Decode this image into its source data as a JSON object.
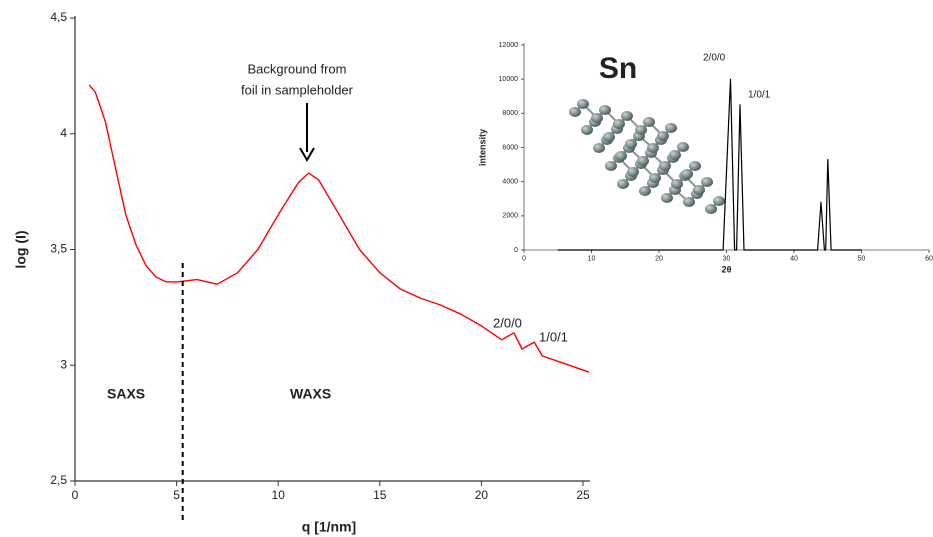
{
  "chart_data": [
    {
      "type": "line",
      "xlabel": "q [1/nm]",
      "ylabel": "log (I)",
      "xlim": [
        0,
        25
      ],
      "xticks": [
        0,
        5,
        10,
        15,
        20,
        25
      ],
      "ylim": [
        2.5,
        4.5
      ],
      "yticks": [
        {
          "value": 2.5,
          "label": "2,5"
        },
        3,
        {
          "value": 3.5,
          "label": "3,5"
        },
        4,
        {
          "value": 4.5,
          "label": "4,5"
        }
      ],
      "x": [
        0.7,
        1.0,
        1.5,
        2.0,
        2.5,
        3.0,
        3.5,
        4.0,
        4.5,
        5.0,
        6.0,
        7.0,
        8.0,
        9.0,
        10.0,
        11.0,
        11.5,
        12.0,
        13.0,
        14.0,
        15.0,
        16.0,
        17.0,
        18.0,
        19.0,
        20.0,
        21.0,
        21.6,
        22.0,
        22.6,
        23.0,
        24.0,
        25.3
      ],
      "values": [
        4.21,
        4.18,
        4.05,
        3.85,
        3.65,
        3.52,
        3.43,
        3.38,
        3.36,
        3.36,
        3.37,
        3.35,
        3.4,
        3.5,
        3.65,
        3.79,
        3.83,
        3.8,
        3.65,
        3.5,
        3.4,
        3.33,
        3.29,
        3.26,
        3.22,
        3.17,
        3.11,
        3.14,
        3.07,
        3.1,
        3.04,
        3.01,
        2.97
      ],
      "color": "#ff0000",
      "vlines": [
        5.3
      ],
      "annotations": [
        "Background from",
        "foil in sampleholder",
        "2/0/0",
        "1/0/1",
        "SAXS",
        "WAXS"
      ]
    },
    {
      "type": "line",
      "title": "Sn",
      "xlabel": "2θ",
      "ylabel": "intensity",
      "xlim": [
        0,
        60
      ],
      "xticks": [
        0,
        10,
        20,
        30,
        40,
        50,
        60
      ],
      "ylim": [
        0,
        12000
      ],
      "yticks": [
        0,
        2000,
        4000,
        6000,
        8000,
        10000,
        12000
      ],
      "x": [
        5,
        29.5,
        30.6,
        31.2,
        31.5,
        32,
        32.6,
        43.5,
        44,
        44.5,
        44.7,
        45,
        45.5,
        50
      ],
      "values": [
        0,
        0,
        10000,
        0,
        0,
        8500,
        0,
        0,
        2800,
        0,
        0,
        5300,
        0,
        0
      ],
      "color": "#000000",
      "annotations": [
        "2/0/0",
        "1/0/1"
      ]
    }
  ]
}
